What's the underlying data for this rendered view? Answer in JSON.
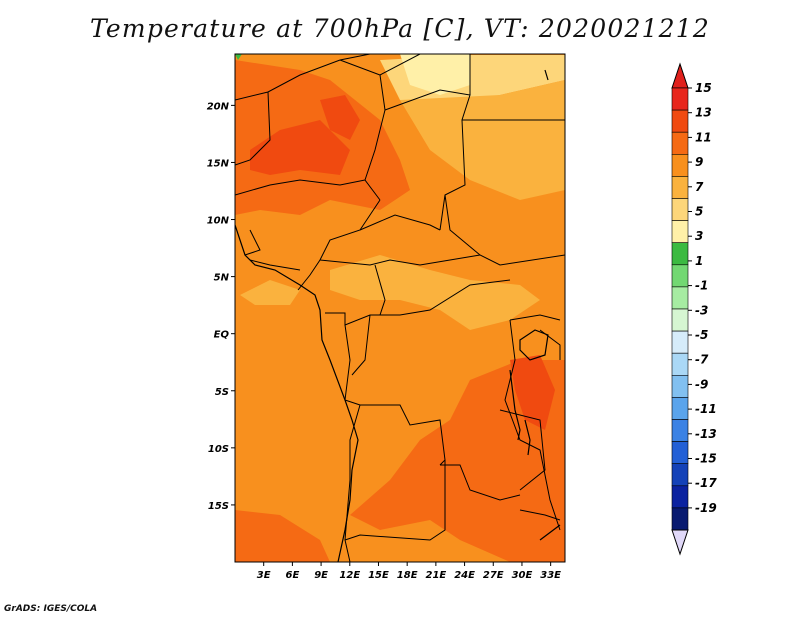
{
  "title": "Temperature at 700hPa [C], VT: 2020021212",
  "footer": "GrADS: IGES/COLA",
  "map": {
    "lon_range": [
      0,
      34.5
    ],
    "lat_range": [
      -20,
      24.5
    ],
    "x_ticks": [
      3,
      6,
      9,
      12,
      15,
      18,
      21,
      24,
      27,
      30,
      33
    ],
    "x_labels": [
      "3E",
      "6E",
      "9E",
      "12E",
      "15E",
      "18E",
      "21E",
      "24E",
      "27E",
      "30E",
      "33E"
    ],
    "y_ticks": [
      20,
      15,
      10,
      5,
      0,
      -5,
      -10,
      -15
    ],
    "y_labels": [
      "20N",
      "15N",
      "10N",
      "5N",
      "EQ",
      "5S",
      "10S",
      "15S"
    ]
  },
  "colorbar": {
    "labels": [
      "15",
      "13",
      "11",
      "9",
      "7",
      "5",
      "3",
      "1",
      "-1",
      "-3",
      "-5",
      "-7",
      "-9",
      "-11",
      "-13",
      "-15",
      "-17",
      "-19"
    ],
    "colors": [
      "#e8261c",
      "#f04a10",
      "#f56a14",
      "#f8901e",
      "#fab23e",
      "#fdd67a",
      "#fff0a8",
      "#3bba41",
      "#72d872",
      "#a6eca2",
      "#d6f6d2",
      "#d6ecfa",
      "#aad8f6",
      "#82c0f0",
      "#5aa4ec",
      "#3b82e4",
      "#2360d6",
      "#1442b8",
      "#0b22a0",
      "#081a70"
    ],
    "top_color": "#e0201c",
    "bottom_color": "#e0d8f8"
  },
  "field_colors": {
    "base": "#f8901e",
    "warm": "#f56a14",
    "hot": "#f04a10",
    "cool": "#fab23e",
    "cooler": "#fdd67a",
    "coolest": "#fff0a8",
    "green": "#3bba41"
  }
}
